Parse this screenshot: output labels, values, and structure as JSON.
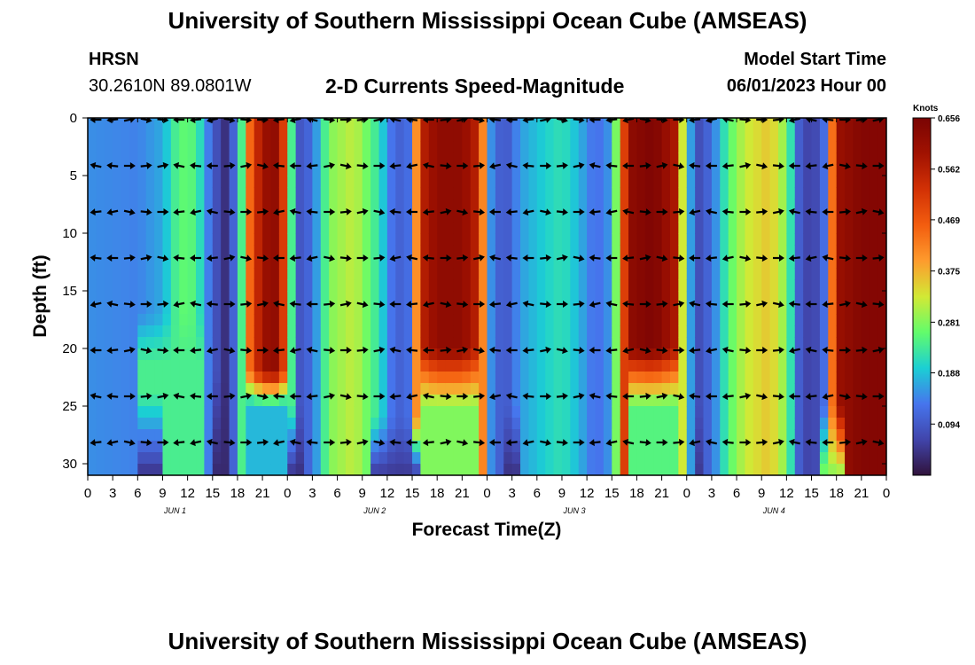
{
  "header": {
    "title": "University of Southern Mississippi Ocean Cube (AMSEAS)",
    "station": "HRSN",
    "coords": "30.2610N  89.0801W",
    "chart_title": "2-D Currents Speed-Magnitude",
    "model_label": "Model Start Time",
    "model_value": "06/01/2023 Hour 00"
  },
  "footer": {
    "title": "University of Southern Mississippi Ocean Cube (AMSEAS)"
  },
  "chart_data": {
    "type": "heatmap",
    "title": "2-D Currents Speed-Magnitude",
    "xlabel": "Forecast Time(Z)",
    "ylabel": "Depth (ft)",
    "x_range_hours": [
      0,
      96
    ],
    "ylim": [
      0,
      31
    ],
    "x_ticks": [
      "0",
      "3",
      "6",
      "9",
      "12",
      "15",
      "18",
      "21",
      "0",
      "3",
      "6",
      "9",
      "12",
      "15",
      "18",
      "21",
      "0",
      "3",
      "6",
      "9",
      "12",
      "15",
      "18",
      "21",
      "0",
      "3",
      "6",
      "9",
      "12",
      "15",
      "18",
      "21",
      "0"
    ],
    "y_ticks": [
      0,
      5,
      10,
      15,
      20,
      25,
      30
    ],
    "day_labels": [
      "JUN 1",
      "JUN 2",
      "JUN 3",
      "JUN 4"
    ],
    "colorbar": {
      "label": "Knots",
      "min": 0,
      "max": 0.656,
      "ticks": [
        "0.656",
        "0.562",
        "0.469",
        "0.375",
        "0.281",
        "0.188",
        "0.094"
      ]
    },
    "features": {
      "columns": [
        {
          "h": 0,
          "s": 0.15
        },
        {
          "h": 6,
          "s": 0.14
        },
        {
          "h": 9,
          "s": 0.17
        },
        {
          "h": 11,
          "s": 0.26
        },
        {
          "h": 13,
          "s": 0.25
        },
        {
          "h": 15,
          "s": 0.1
        },
        {
          "h": 16.5,
          "s": 0.04
        },
        {
          "h": 18,
          "s": 0.14
        },
        {
          "h": 19.5,
          "s": 0.45
        },
        {
          "h": 21,
          "s": 0.6
        },
        {
          "h": 23,
          "s": 0.62
        },
        {
          "h": 24,
          "s": 0.4
        },
        {
          "h": 25,
          "s": 0.08
        },
        {
          "h": 27,
          "s": 0.12
        },
        {
          "h": 29,
          "s": 0.28
        },
        {
          "h": 32,
          "s": 0.32
        },
        {
          "h": 35,
          "s": 0.22
        },
        {
          "h": 37,
          "s": 0.1
        },
        {
          "h": 38.5,
          "s": 0.12
        },
        {
          "h": 40,
          "s": 0.55
        },
        {
          "h": 42,
          "s": 0.62
        },
        {
          "h": 45,
          "s": 0.62
        },
        {
          "h": 47,
          "s": 0.55
        },
        {
          "h": 48.5,
          "s": 0.15
        },
        {
          "h": 50,
          "s": 0.08
        },
        {
          "h": 52,
          "s": 0.16
        },
        {
          "h": 55,
          "s": 0.2
        },
        {
          "h": 57,
          "s": 0.22
        },
        {
          "h": 59,
          "s": 0.18
        },
        {
          "h": 61,
          "s": 0.12
        },
        {
          "h": 63,
          "s": 0.16
        },
        {
          "h": 65,
          "s": 0.62
        },
        {
          "h": 68,
          "s": 0.65
        },
        {
          "h": 70.5,
          "s": 0.58
        },
        {
          "h": 72,
          "s": 0.2
        },
        {
          "h": 73.5,
          "s": 0.08
        },
        {
          "h": 75,
          "s": 0.12
        },
        {
          "h": 77,
          "s": 0.25
        },
        {
          "h": 79,
          "s": 0.32
        },
        {
          "h": 82,
          "s": 0.36
        },
        {
          "h": 84,
          "s": 0.28
        },
        {
          "h": 85.5,
          "s": 0.1
        },
        {
          "h": 87,
          "s": 0.05
        },
        {
          "h": 88.5,
          "s": 0.12
        },
        {
          "h": 90,
          "s": 0.6
        },
        {
          "h": 93,
          "s": 0.64
        },
        {
          "h": 96,
          "s": 0.64
        }
      ],
      "depth_variation": [
        {
          "h0": 19,
          "h1": 24,
          "depth_start": 22,
          "depth_end": 25,
          "to": 0.18
        },
        {
          "h0": 40,
          "h1": 47,
          "depth_start": 20,
          "depth_end": 25,
          "to": 0.28
        },
        {
          "h0": 65,
          "h1": 71,
          "depth_start": 20,
          "depth_end": 25,
          "to": 0.25
        },
        {
          "h0": 6,
          "h1": 14,
          "depth_start": 17,
          "depth_end": 21,
          "to": 0.24
        },
        {
          "h0": 6,
          "h1": 9,
          "depth_start": 24,
          "depth_end": 31,
          "to": 0.04
        },
        {
          "h0": 15,
          "h1": 17,
          "depth_start": 22,
          "depth_end": 31,
          "to": 0.03
        },
        {
          "h0": 24,
          "h1": 26,
          "depth_start": 25,
          "depth_end": 31,
          "to": 0.04
        },
        {
          "h0": 34,
          "h1": 40,
          "depth_start": 26,
          "depth_end": 31,
          "to": 0.05
        },
        {
          "h0": 50,
          "h1": 52,
          "depth_start": 25,
          "depth_end": 31,
          "to": 0.04
        },
        {
          "h0": 73,
          "h1": 74,
          "depth_start": 25,
          "depth_end": 31,
          "to": 0.05
        },
        {
          "h0": 88,
          "h1": 91,
          "depth_start": 25,
          "depth_end": 31,
          "to": 0.28
        }
      ],
      "arrow_rows_depth_ft": [
        0,
        4,
        8,
        12,
        16,
        20,
        24,
        28
      ],
      "arrow_spacing_hours": 2,
      "arrows_predominant_direction": "east-west oscillating with tide"
    }
  }
}
